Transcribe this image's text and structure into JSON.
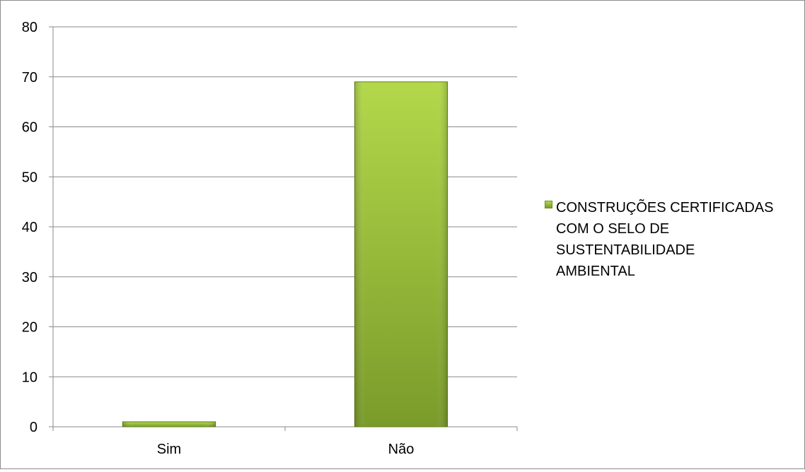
{
  "chart_data": {
    "type": "bar",
    "categories": [
      "Sim",
      "Não"
    ],
    "series": [
      {
        "name": "CONSTRUÇÕES CERTIFICADAS COM O SELO DE SUSTENTABILIDADE AMBIENTAL",
        "values": [
          1,
          69
        ]
      }
    ],
    "ylim": [
      0,
      80
    ],
    "yticks": [
      "0",
      "10",
      "20",
      "30",
      "40",
      "50",
      "60",
      "70",
      "80"
    ],
    "grid": true,
    "legend_position": "right",
    "colors": {
      "bar_light": "#b3d84a",
      "bar_dark": "#7a9b2a",
      "bar_edge": "#5e7d1c"
    }
  },
  "legend": {
    "lines": [
      "CONSTRUÇÕES CERTIFICADAS",
      "COM O SELO DE",
      "SUSTENTABILIDADE",
      "AMBIENTAL"
    ]
  }
}
